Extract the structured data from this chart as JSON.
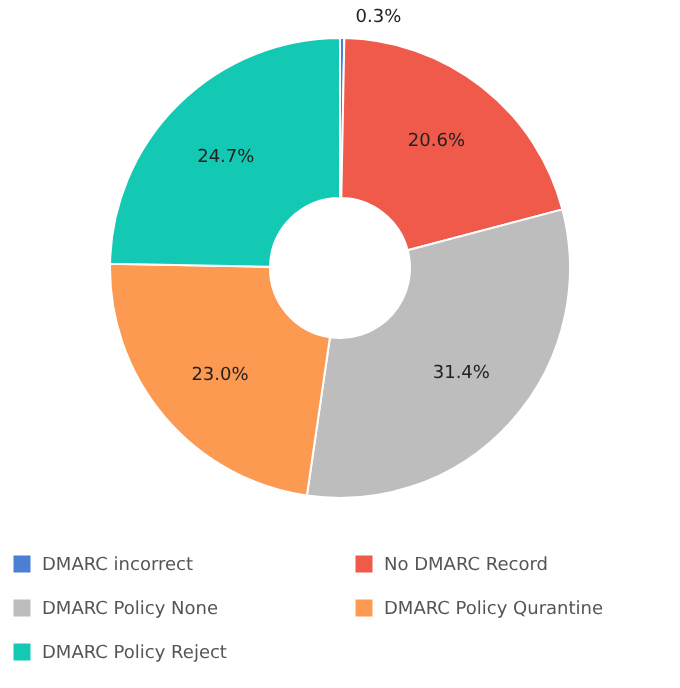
{
  "chart_data": {
    "type": "donut",
    "categories": [
      "DMARC incorrect",
      "No DMARC Record",
      "DMARC Policy None",
      "DMARC Policy Qurantine",
      "DMARC Policy Reject"
    ],
    "values": [
      0.3,
      20.6,
      31.4,
      23.0,
      24.7
    ],
    "colors": [
      "#4a7fd4",
      "#ef5a4a",
      "#bdbdbd",
      "#fd9a52",
      "#14c9b4"
    ],
    "value_labels": [
      "0.3%",
      "20.6%",
      "31.4%",
      "23.0%",
      "24.7%"
    ],
    "legend": "bottom"
  }
}
